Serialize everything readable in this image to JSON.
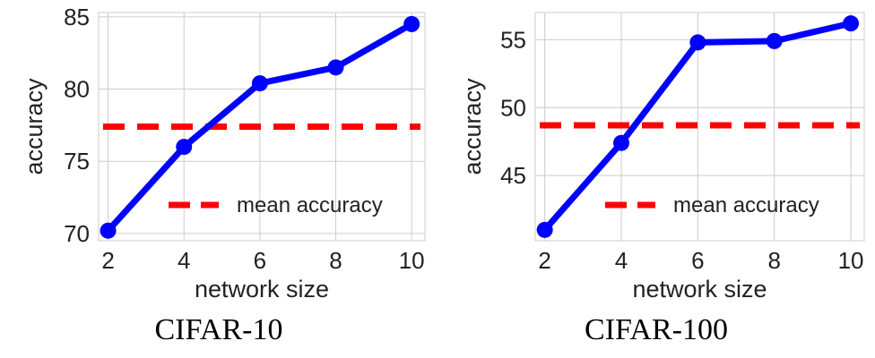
{
  "chart_data": [
    {
      "type": "line",
      "caption": "CIFAR-10",
      "xlabel": "network size",
      "ylabel": "accuracy",
      "xlim": [
        1.75,
        10.35
      ],
      "ylim": [
        69.5,
        85.3
      ],
      "xticks": [
        2,
        4,
        6,
        8,
        10
      ],
      "yticks": [
        70,
        75,
        80,
        85
      ],
      "grid": true,
      "series": [
        {
          "values": [
            {
              "x": 2,
              "y": 70.2
            },
            {
              "x": 4,
              "y": 76.0
            },
            {
              "x": 6,
              "y": 80.4
            },
            {
              "x": 8,
              "y": 81.5
            },
            {
              "x": 10,
              "y": 84.5
            }
          ],
          "color": "#0000ff",
          "style": "solid",
          "marker": "circle"
        },
        {
          "name": "mean accuracy",
          "constant": 77.4,
          "color": "#ff0000",
          "style": "dashed"
        }
      ],
      "legend": {
        "position": "lower-right",
        "label": "mean accuracy"
      }
    },
    {
      "type": "line",
      "caption": "CIFAR-100",
      "xlabel": "network size",
      "ylabel": "accuracy",
      "xlim": [
        1.75,
        10.35
      ],
      "ylim": [
        40.2,
        57.0
      ],
      "xticks": [
        2,
        4,
        6,
        8,
        10
      ],
      "yticks": [
        45,
        50,
        55
      ],
      "grid": true,
      "series": [
        {
          "values": [
            {
              "x": 2,
              "y": 41.0
            },
            {
              "x": 4,
              "y": 47.4
            },
            {
              "x": 6,
              "y": 54.8
            },
            {
              "x": 8,
              "y": 54.9
            },
            {
              "x": 10,
              "y": 56.2
            }
          ],
          "color": "#0000ff",
          "style": "solid",
          "marker": "circle"
        },
        {
          "name": "mean accuracy",
          "constant": 48.7,
          "color": "#ff0000",
          "style": "dashed"
        }
      ],
      "legend": {
        "position": "lower-right",
        "label": "mean accuracy"
      }
    }
  ]
}
